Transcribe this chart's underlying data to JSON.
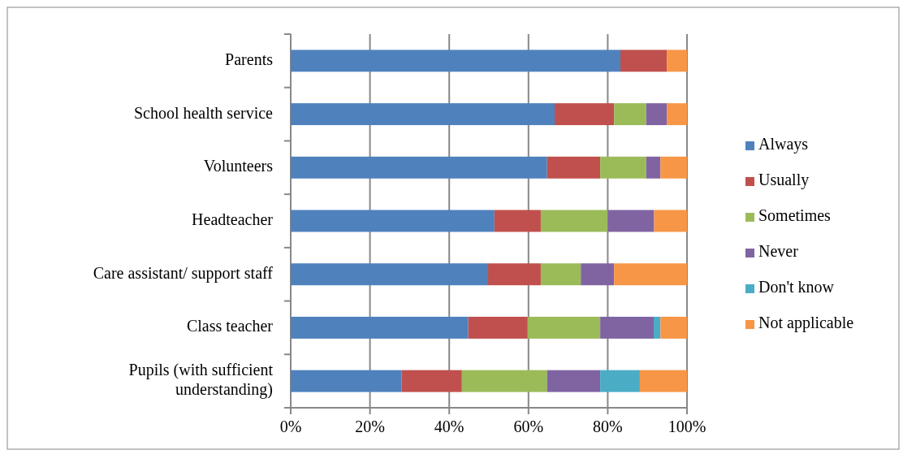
{
  "chart_data": {
    "type": "bar",
    "orientation": "horizontal",
    "stacked": true,
    "categories": [
      "Parents",
      "School health service",
      "Volunteers",
      "Headteacher",
      "Care assistant/ support staff",
      "Class teacher",
      "Pupils (with sufficient understanding)"
    ],
    "series": [
      {
        "name": "Always",
        "color": "#4f81bd",
        "values": [
          83.2,
          66.6,
          64.7,
          51.4,
          49.8,
          44.8,
          28.0
        ]
      },
      {
        "name": "Usually",
        "color": "#c0504d",
        "values": [
          11.7,
          15.0,
          13.4,
          11.7,
          13.3,
          15.0,
          15.2
        ]
      },
      {
        "name": "Sometimes",
        "color": "#9bbb59",
        "values": [
          0,
          8.1,
          11.6,
          16.9,
          10.1,
          18.3,
          21.5
        ]
      },
      {
        "name": "Never",
        "color": "#8064a2",
        "values": [
          0,
          5.2,
          3.6,
          11.7,
          8.4,
          13.5,
          13.4
        ]
      },
      {
        "name": "Don't know",
        "color": "#4bacc6",
        "values": [
          0,
          0,
          0,
          0,
          0,
          1.7,
          10.0
        ]
      },
      {
        "name": "Not applicable",
        "color": "#f79646",
        "values": [
          5.1,
          5.1,
          6.7,
          8.3,
          18.4,
          6.7,
          11.9
        ]
      }
    ],
    "xlim": [
      0,
      100
    ],
    "xticks": [
      {
        "value": 0,
        "label": "0%"
      },
      {
        "value": 20,
        "label": "20%"
      },
      {
        "value": 40,
        "label": "40%"
      },
      {
        "value": 60,
        "label": "60%"
      },
      {
        "value": 80,
        "label": "80%"
      },
      {
        "value": 100,
        "label": "100%"
      }
    ],
    "grid": "x",
    "legend": "right"
  }
}
